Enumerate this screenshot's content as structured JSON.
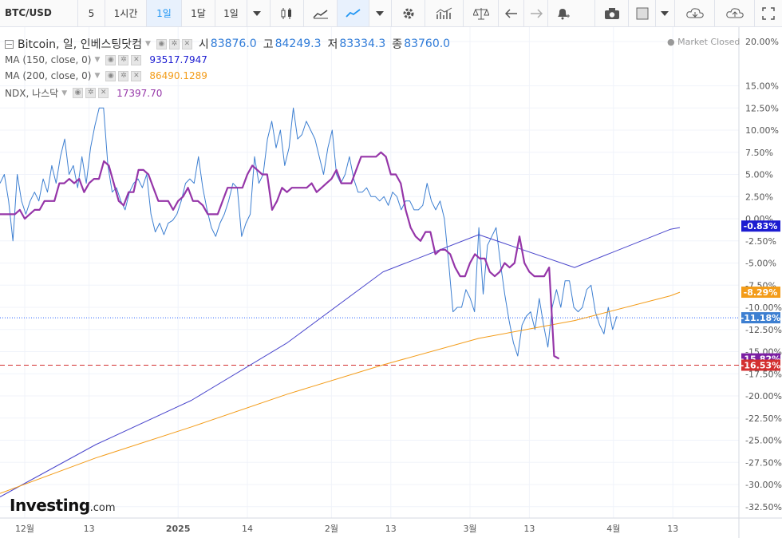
{
  "toolbar": {
    "symbol": "BTC/USD",
    "intervals": [
      "5",
      "1시간",
      "1일",
      "1달",
      "1일"
    ],
    "active_interval_index": 2,
    "icons": [
      "candlestick-icon",
      "line-chart-icon",
      "area-chart-icon",
      "gear-icon",
      "indicators-icon",
      "scale-icon",
      "undo-icon",
      "redo-icon",
      "alert-icon",
      "camera-icon",
      "color-box-icon",
      "cloud-download-icon",
      "cloud-upload-icon",
      "fullscreen-icon"
    ]
  },
  "legend": {
    "title": "Bitcoin, 일, 인베스팅닷컴",
    "open_label": "시",
    "open": "83876.0",
    "high_label": "고",
    "high": "84249.3",
    "low_label": "저",
    "low": "83334.3",
    "close_label": "종",
    "close": "83760.0",
    "ma150_label": "MA (150, close, 0)",
    "ma150_value": "93517.7947",
    "ma200_label": "MA (200, close, 0)",
    "ma200_value": "86490.1289",
    "ndx_label": "NDX, 나스닥",
    "ndx_value": "17397.70"
  },
  "market_status": "Market Closed",
  "logo": {
    "main": "Investing",
    "suffix": ".com"
  },
  "colors": {
    "btc": "#3d7fd1",
    "ma150": "#4a46cc",
    "ma200": "#f39c19",
    "ndx": "#9535a8",
    "dashed": "#d32f2f",
    "dotted": "#2962ff"
  },
  "chart_data": {
    "type": "line",
    "title": "Bitcoin, 일, 인베스팅닷컴",
    "y_axis": {
      "unit": "%",
      "ylim": [
        -35,
        22
      ],
      "ticks": [
        20,
        15,
        12.5,
        10,
        7.5,
        5,
        2.5,
        0,
        -2.5,
        -5,
        -7.5,
        -10,
        -12.5,
        -15,
        -17.5,
        -20,
        -22.5,
        -25,
        -27.5,
        -30,
        -32.5
      ],
      "tick_labels": [
        "20.00%",
        "15.00%",
        "12.50%",
        "10.00%",
        "7.50%",
        "5.00%",
        "2.50%",
        "0.00%",
        "-2.50%",
        "-5.00%",
        "-7.50%",
        "-10.00%",
        "-12.50%",
        "-15.00%",
        "-17.50%",
        "-20.00%",
        "-22.50%",
        "-25.00%",
        "-27.50%",
        "-30.00%",
        "-32.50%"
      ]
    },
    "x_axis": {
      "ticks": [
        {
          "label": "12월",
          "day": 14
        },
        {
          "label": "13",
          "day": 27
        },
        {
          "label": "2025",
          "day": 45
        },
        {
          "label": "14",
          "day": 59
        },
        {
          "label": "2월",
          "day": 76
        },
        {
          "label": "13",
          "day": 88
        },
        {
          "label": "3월",
          "day": 104
        },
        {
          "label": "13",
          "day": 116
        },
        {
          "label": "4월",
          "day": 133
        },
        {
          "label": "13",
          "day": 145
        }
      ]
    },
    "day_range": [
      9,
      150
    ],
    "grid": true,
    "series": [
      {
        "name": "Bitcoin",
        "color": "#3d7fd1",
        "values": [
          4.0,
          5.0,
          2.0,
          -2.5,
          5.0,
          2.0,
          0.5,
          2.0,
          3.0,
          2.0,
          4.5,
          3.0,
          6.0,
          4.0,
          7.0,
          9.0,
          5.0,
          6.0,
          3.5,
          7.0,
          4.0,
          8.0,
          10.5,
          12.5,
          12.5,
          6.0,
          3.0,
          3.5,
          2.0,
          1.0,
          3.0,
          4.0,
          4.5,
          3.5,
          5.0,
          0.5,
          -1.5,
          -0.5,
          -1.8,
          -0.5,
          -0.2,
          0.5,
          2.0,
          4.0,
          4.5,
          4.0,
          7.0,
          3.5,
          1.0,
          -1.0,
          -2.0,
          -0.5,
          0.5,
          2.0,
          4.0,
          3.5,
          -2.0,
          -0.5,
          0.5,
          7.0,
          4.0,
          5.0,
          9.0,
          11.0,
          8.0,
          10.0,
          6.0,
          8.0,
          12.5,
          9.0,
          9.5,
          11.0,
          10.0,
          9.0,
          7.0,
          5.0,
          8.0,
          10.0,
          5.0,
          4.0,
          5.0,
          7.0,
          4.5,
          3.0,
          3.0,
          3.5,
          2.5,
          2.5,
          2.0,
          2.5,
          1.5,
          3.0,
          2.5,
          1.0,
          2.0,
          2.0,
          1.0,
          1.0,
          1.5,
          4.0,
          2.0,
          1.0,
          2.0,
          0.0,
          -5.0,
          -10.5,
          -10.0,
          -10.0,
          -8.0,
          -9.0,
          -10.5,
          -1.0,
          -8.5,
          -3.0,
          -2.0,
          -1.0,
          -5.0,
          -8.5,
          -11.5,
          -14.0,
          -15.5,
          -12.0,
          -11.0,
          -10.5,
          -12.5,
          -9.0,
          -12.0,
          -14.5,
          -10.0,
          -8.0,
          -10.0,
          -7.0,
          -7.0,
          -10.0,
          -10.5,
          -10.0,
          -8.0,
          -7.5,
          -10.5,
          -12.0,
          -13.0,
          -10.0,
          -12.5,
          -11.0
        ]
      },
      {
        "name": "MA (150, close, 0)",
        "color": "#4a46cc",
        "points": [
          [
            0,
            -31.4
          ],
          [
            20,
            -25.5
          ],
          [
            40,
            -20.5
          ],
          [
            60,
            -14.0
          ],
          [
            80,
            -6.0
          ],
          [
            100,
            -1.8
          ],
          [
            120,
            -5.5
          ],
          [
            140,
            -1.2
          ],
          [
            142,
            -1.0
          ]
        ]
      },
      {
        "name": "MA (200, close, 0)",
        "color": "#f39c19",
        "points": [
          [
            0,
            -31.0
          ],
          [
            20,
            -27.0
          ],
          [
            40,
            -23.5
          ],
          [
            60,
            -19.8
          ],
          [
            80,
            -16.5
          ],
          [
            100,
            -13.5
          ],
          [
            120,
            -11.5
          ],
          [
            140,
            -8.7
          ],
          [
            142,
            -8.3
          ]
        ]
      },
      {
        "name": "NDX, 나스닥",
        "color": "#9535a8",
        "points": [
          [
            9,
            0.5
          ],
          [
            12,
            0.5
          ],
          [
            13,
            1.0
          ],
          [
            14,
            0.0
          ],
          [
            15,
            0.5
          ],
          [
            16,
            1.0
          ],
          [
            17,
            1.0
          ],
          [
            18,
            2.0
          ],
          [
            19,
            2.0
          ],
          [
            20,
            2.0
          ],
          [
            21,
            4.0
          ],
          [
            22,
            4.0
          ],
          [
            23,
            4.5
          ],
          [
            24,
            4.0
          ],
          [
            25,
            4.5
          ],
          [
            26,
            3.0
          ],
          [
            27,
            4.0
          ],
          [
            28,
            4.5
          ],
          [
            29,
            4.5
          ],
          [
            30,
            6.5
          ],
          [
            31,
            6.0
          ],
          [
            33,
            2.0
          ],
          [
            34,
            1.5
          ],
          [
            35,
            3.0
          ],
          [
            36,
            3.0
          ],
          [
            37,
            5.5
          ],
          [
            38,
            5.5
          ],
          [
            39,
            5.0
          ],
          [
            40,
            3.5
          ],
          [
            41,
            2.0
          ],
          [
            42,
            2.0
          ],
          [
            43,
            2.0
          ],
          [
            44,
            1.0
          ],
          [
            45,
            2.0
          ],
          [
            46,
            2.5
          ],
          [
            47,
            3.5
          ],
          [
            48,
            2.0
          ],
          [
            49,
            2.0
          ],
          [
            50,
            1.5
          ],
          [
            51,
            0.5
          ],
          [
            52,
            0.5
          ],
          [
            53,
            0.5
          ],
          [
            54,
            2.0
          ],
          [
            55,
            3.5
          ],
          [
            56,
            3.5
          ],
          [
            57,
            3.5
          ],
          [
            58,
            3.5
          ],
          [
            59,
            5.0
          ],
          [
            60,
            6.0
          ],
          [
            61,
            5.5
          ],
          [
            62,
            5.0
          ],
          [
            63,
            5.0
          ],
          [
            64,
            1.0
          ],
          [
            65,
            2.0
          ],
          [
            66,
            3.5
          ],
          [
            67,
            3.0
          ],
          [
            68,
            3.5
          ],
          [
            69,
            3.5
          ],
          [
            70,
            3.5
          ],
          [
            71,
            3.5
          ],
          [
            72,
            4.0
          ],
          [
            73,
            3.0
          ],
          [
            74,
            3.5
          ],
          [
            75,
            4.0
          ],
          [
            76,
            4.5
          ],
          [
            77,
            5.5
          ],
          [
            78,
            4.0
          ],
          [
            79,
            4.0
          ],
          [
            80,
            4.0
          ],
          [
            81,
            5.5
          ],
          [
            82,
            7.0
          ],
          [
            83,
            7.0
          ],
          [
            84,
            7.0
          ],
          [
            85,
            7.0
          ],
          [
            86,
            7.5
          ],
          [
            87,
            7.0
          ],
          [
            88,
            5.0
          ],
          [
            89,
            5.0
          ],
          [
            90,
            4.0
          ],
          [
            91,
            1.0
          ],
          [
            92,
            -1.0
          ],
          [
            93,
            -2.0
          ],
          [
            94,
            -2.5
          ],
          [
            95,
            -1.5
          ],
          [
            96,
            -1.5
          ],
          [
            97,
            -4.0
          ],
          [
            98,
            -3.5
          ],
          [
            99,
            -3.5
          ],
          [
            100,
            -4.0
          ],
          [
            101,
            -5.5
          ],
          [
            102,
            -6.5
          ],
          [
            103,
            -6.5
          ],
          [
            104,
            -5.0
          ],
          [
            105,
            -4.0
          ],
          [
            106,
            -4.5
          ],
          [
            107,
            -4.5
          ],
          [
            108,
            -6.0
          ],
          [
            109,
            -6.5
          ],
          [
            110,
            -6.0
          ],
          [
            111,
            -5.0
          ],
          [
            112,
            -5.5
          ],
          [
            113,
            -5.0
          ],
          [
            114,
            -2.0
          ],
          [
            115,
            -5.0
          ],
          [
            116,
            -6.0
          ],
          [
            117,
            -6.5
          ],
          [
            118,
            -6.5
          ],
          [
            119,
            -6.5
          ],
          [
            120,
            -5.5
          ],
          [
            121,
            -15.5
          ],
          [
            122,
            -15.8
          ]
        ]
      }
    ],
    "price_labels": [
      {
        "series": "MA (150, close, 0)",
        "value": -0.83,
        "text": "-0.83%",
        "color": "#1c1cd1"
      },
      {
        "series": "MA (200, close, 0)",
        "value": -8.29,
        "text": "-8.29%",
        "color": "#f39c19"
      },
      {
        "series": "Bitcoin",
        "value": -11.18,
        "text": "-11.18%",
        "color": "#3d7fd1"
      },
      {
        "series": "NDX, 나스닥",
        "value": -15.82,
        "text": "-15.82%",
        "color": "#7b1fa2"
      },
      {
        "series": "low",
        "value": -16.53,
        "text": "-16.53%",
        "color": "#d32f2f"
      }
    ],
    "horizontal_lines": [
      {
        "value": -11.18,
        "style": "dotted",
        "color": "#2962ff"
      },
      {
        "value": -16.53,
        "style": "dashed",
        "color": "#d32f2f"
      }
    ]
  }
}
